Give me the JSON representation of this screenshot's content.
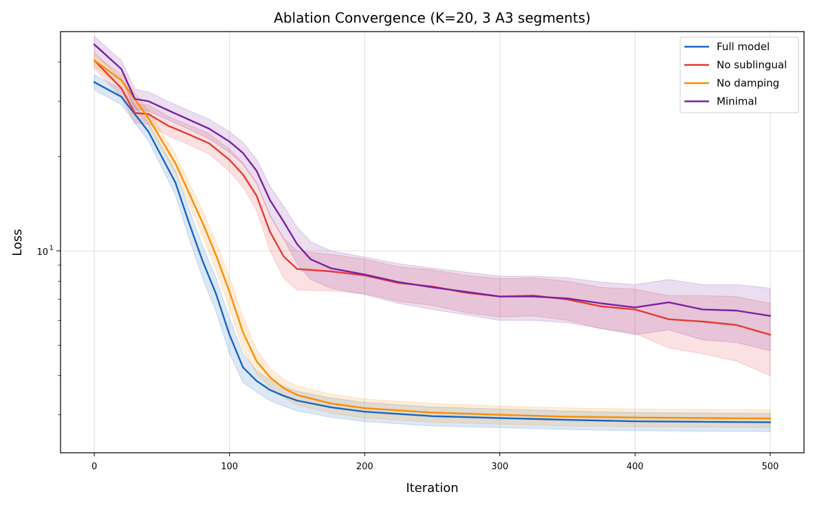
{
  "chart_data": {
    "type": "line",
    "title": "Ablation Convergence (K=20, 3 A3 segments)",
    "xlabel": "Iteration",
    "ylabel": "Loss",
    "xlim": [
      -25,
      525
    ],
    "ylim": [
      2.27,
      50
    ],
    "yscale": "log",
    "x_ticks": [
      0,
      100,
      200,
      300,
      400,
      500
    ],
    "y_major_tick": {
      "value": 10,
      "base": "10",
      "exponent": "1"
    },
    "y_minor_ticks": [
      3,
      4,
      5,
      6,
      7,
      8,
      9,
      20,
      30,
      40
    ],
    "grid": true,
    "legend_position": "top-right",
    "legend_frame": true,
    "shaded_band": true,
    "series": [
      {
        "name": "Full model",
        "color": "#1565c0",
        "points": [
          [
            0,
            34.5
          ],
          [
            20,
            31
          ],
          [
            40,
            24
          ],
          [
            60,
            16.5
          ],
          [
            70,
            12.3
          ],
          [
            80,
            9.3
          ],
          [
            90,
            7.3
          ],
          [
            100,
            5.4
          ],
          [
            110,
            4.25
          ],
          [
            120,
            3.85
          ],
          [
            130,
            3.6
          ],
          [
            140,
            3.45
          ],
          [
            150,
            3.33
          ],
          [
            175,
            3.17
          ],
          [
            200,
            3.07
          ],
          [
            250,
            2.97
          ],
          [
            300,
            2.93
          ],
          [
            350,
            2.89
          ],
          [
            400,
            2.86
          ],
          [
            450,
            2.85
          ],
          [
            500,
            2.84
          ]
        ],
        "band_width": [
          3.8,
          3.5,
          3.2,
          2.9,
          2.6,
          2.2,
          1.8,
          1.4,
          0.9,
          0.6,
          0.55,
          0.5,
          0.48,
          0.45,
          0.43,
          0.41,
          0.4,
          0.39,
          0.38,
          0.38,
          0.38
        ]
      },
      {
        "name": "No sublingual",
        "color": "#e53935",
        "points": [
          [
            0,
            40.5
          ],
          [
            20,
            33
          ],
          [
            30,
            27.5
          ],
          [
            40,
            27.3
          ],
          [
            55,
            25
          ],
          [
            70,
            23.5
          ],
          [
            85,
            22
          ],
          [
            100,
            19.5
          ],
          [
            110,
            17.5
          ],
          [
            120,
            15
          ],
          [
            130,
            11.5
          ],
          [
            140,
            9.6
          ],
          [
            150,
            8.75
          ],
          [
            175,
            8.6
          ],
          [
            200,
            8.35
          ],
          [
            225,
            7.9
          ],
          [
            250,
            7.7
          ],
          [
            275,
            7.35
          ],
          [
            300,
            7.15
          ],
          [
            325,
            7.2
          ],
          [
            350,
            7
          ],
          [
            375,
            6.65
          ],
          [
            400,
            6.5
          ],
          [
            425,
            6.05
          ],
          [
            450,
            5.95
          ],
          [
            475,
            5.8
          ],
          [
            500,
            5.4
          ]
        ],
        "band_width": [
          4.5,
          4.2,
          4,
          3.8,
          3.6,
          3.4,
          3.3,
          3.2,
          3.1,
          3.1,
          3,
          2.8,
          2.5,
          2.3,
          2.1,
          2,
          2,
          2,
          2,
          2,
          2,
          2,
          2.1,
          2.3,
          2.5,
          2.7,
          2.8
        ]
      },
      {
        "name": "No damping",
        "color": "#fb8c00",
        "points": [
          [
            0,
            40.5
          ],
          [
            20,
            35
          ],
          [
            40,
            26.5
          ],
          [
            60,
            19
          ],
          [
            80,
            12.3
          ],
          [
            90,
            9.7
          ],
          [
            100,
            7.4
          ],
          [
            110,
            5.5
          ],
          [
            120,
            4.45
          ],
          [
            130,
            3.95
          ],
          [
            140,
            3.65
          ],
          [
            150,
            3.47
          ],
          [
            175,
            3.26
          ],
          [
            200,
            3.15
          ],
          [
            250,
            3.05
          ],
          [
            300,
            3
          ],
          [
            350,
            2.96
          ],
          [
            400,
            2.94
          ],
          [
            450,
            2.93
          ],
          [
            500,
            2.92
          ]
        ],
        "band_width": [
          3.5,
          3.2,
          2.9,
          2.6,
          2.3,
          2,
          1.7,
          1.3,
          0.8,
          0.55,
          0.5,
          0.48,
          0.46,
          0.44,
          0.42,
          0.4,
          0.39,
          0.38,
          0.38,
          0.38
        ]
      },
      {
        "name": "Minimal",
        "color": "#7b1fa2",
        "points": [
          [
            0,
            45.5
          ],
          [
            20,
            38
          ],
          [
            30,
            30.5
          ],
          [
            40,
            30
          ],
          [
            55,
            28
          ],
          [
            70,
            26.2
          ],
          [
            85,
            24.5
          ],
          [
            100,
            22.3
          ],
          [
            110,
            20.5
          ],
          [
            120,
            18
          ],
          [
            130,
            14.5
          ],
          [
            140,
            12.4
          ],
          [
            150,
            10.5
          ],
          [
            160,
            9.4
          ],
          [
            175,
            8.8
          ],
          [
            200,
            8.4
          ],
          [
            225,
            7.95
          ],
          [
            250,
            7.65
          ],
          [
            275,
            7.4
          ],
          [
            300,
            7.15
          ],
          [
            325,
            7.15
          ],
          [
            350,
            7.05
          ],
          [
            375,
            6.8
          ],
          [
            400,
            6.6
          ],
          [
            425,
            6.85
          ],
          [
            450,
            6.5
          ],
          [
            475,
            6.45
          ],
          [
            500,
            6.2
          ]
        ],
        "band_width": [
          5.5,
          5,
          4.5,
          4.2,
          3.8,
          3.6,
          3.5,
          3.4,
          3.3,
          3.2,
          3.1,
          3,
          2.8,
          2.6,
          2.4,
          2.3,
          2.3,
          2.3,
          2.3,
          2.3,
          2.3,
          2.3,
          2.3,
          2.4,
          2.5,
          2.6,
          2.7,
          2.8
        ]
      }
    ]
  }
}
